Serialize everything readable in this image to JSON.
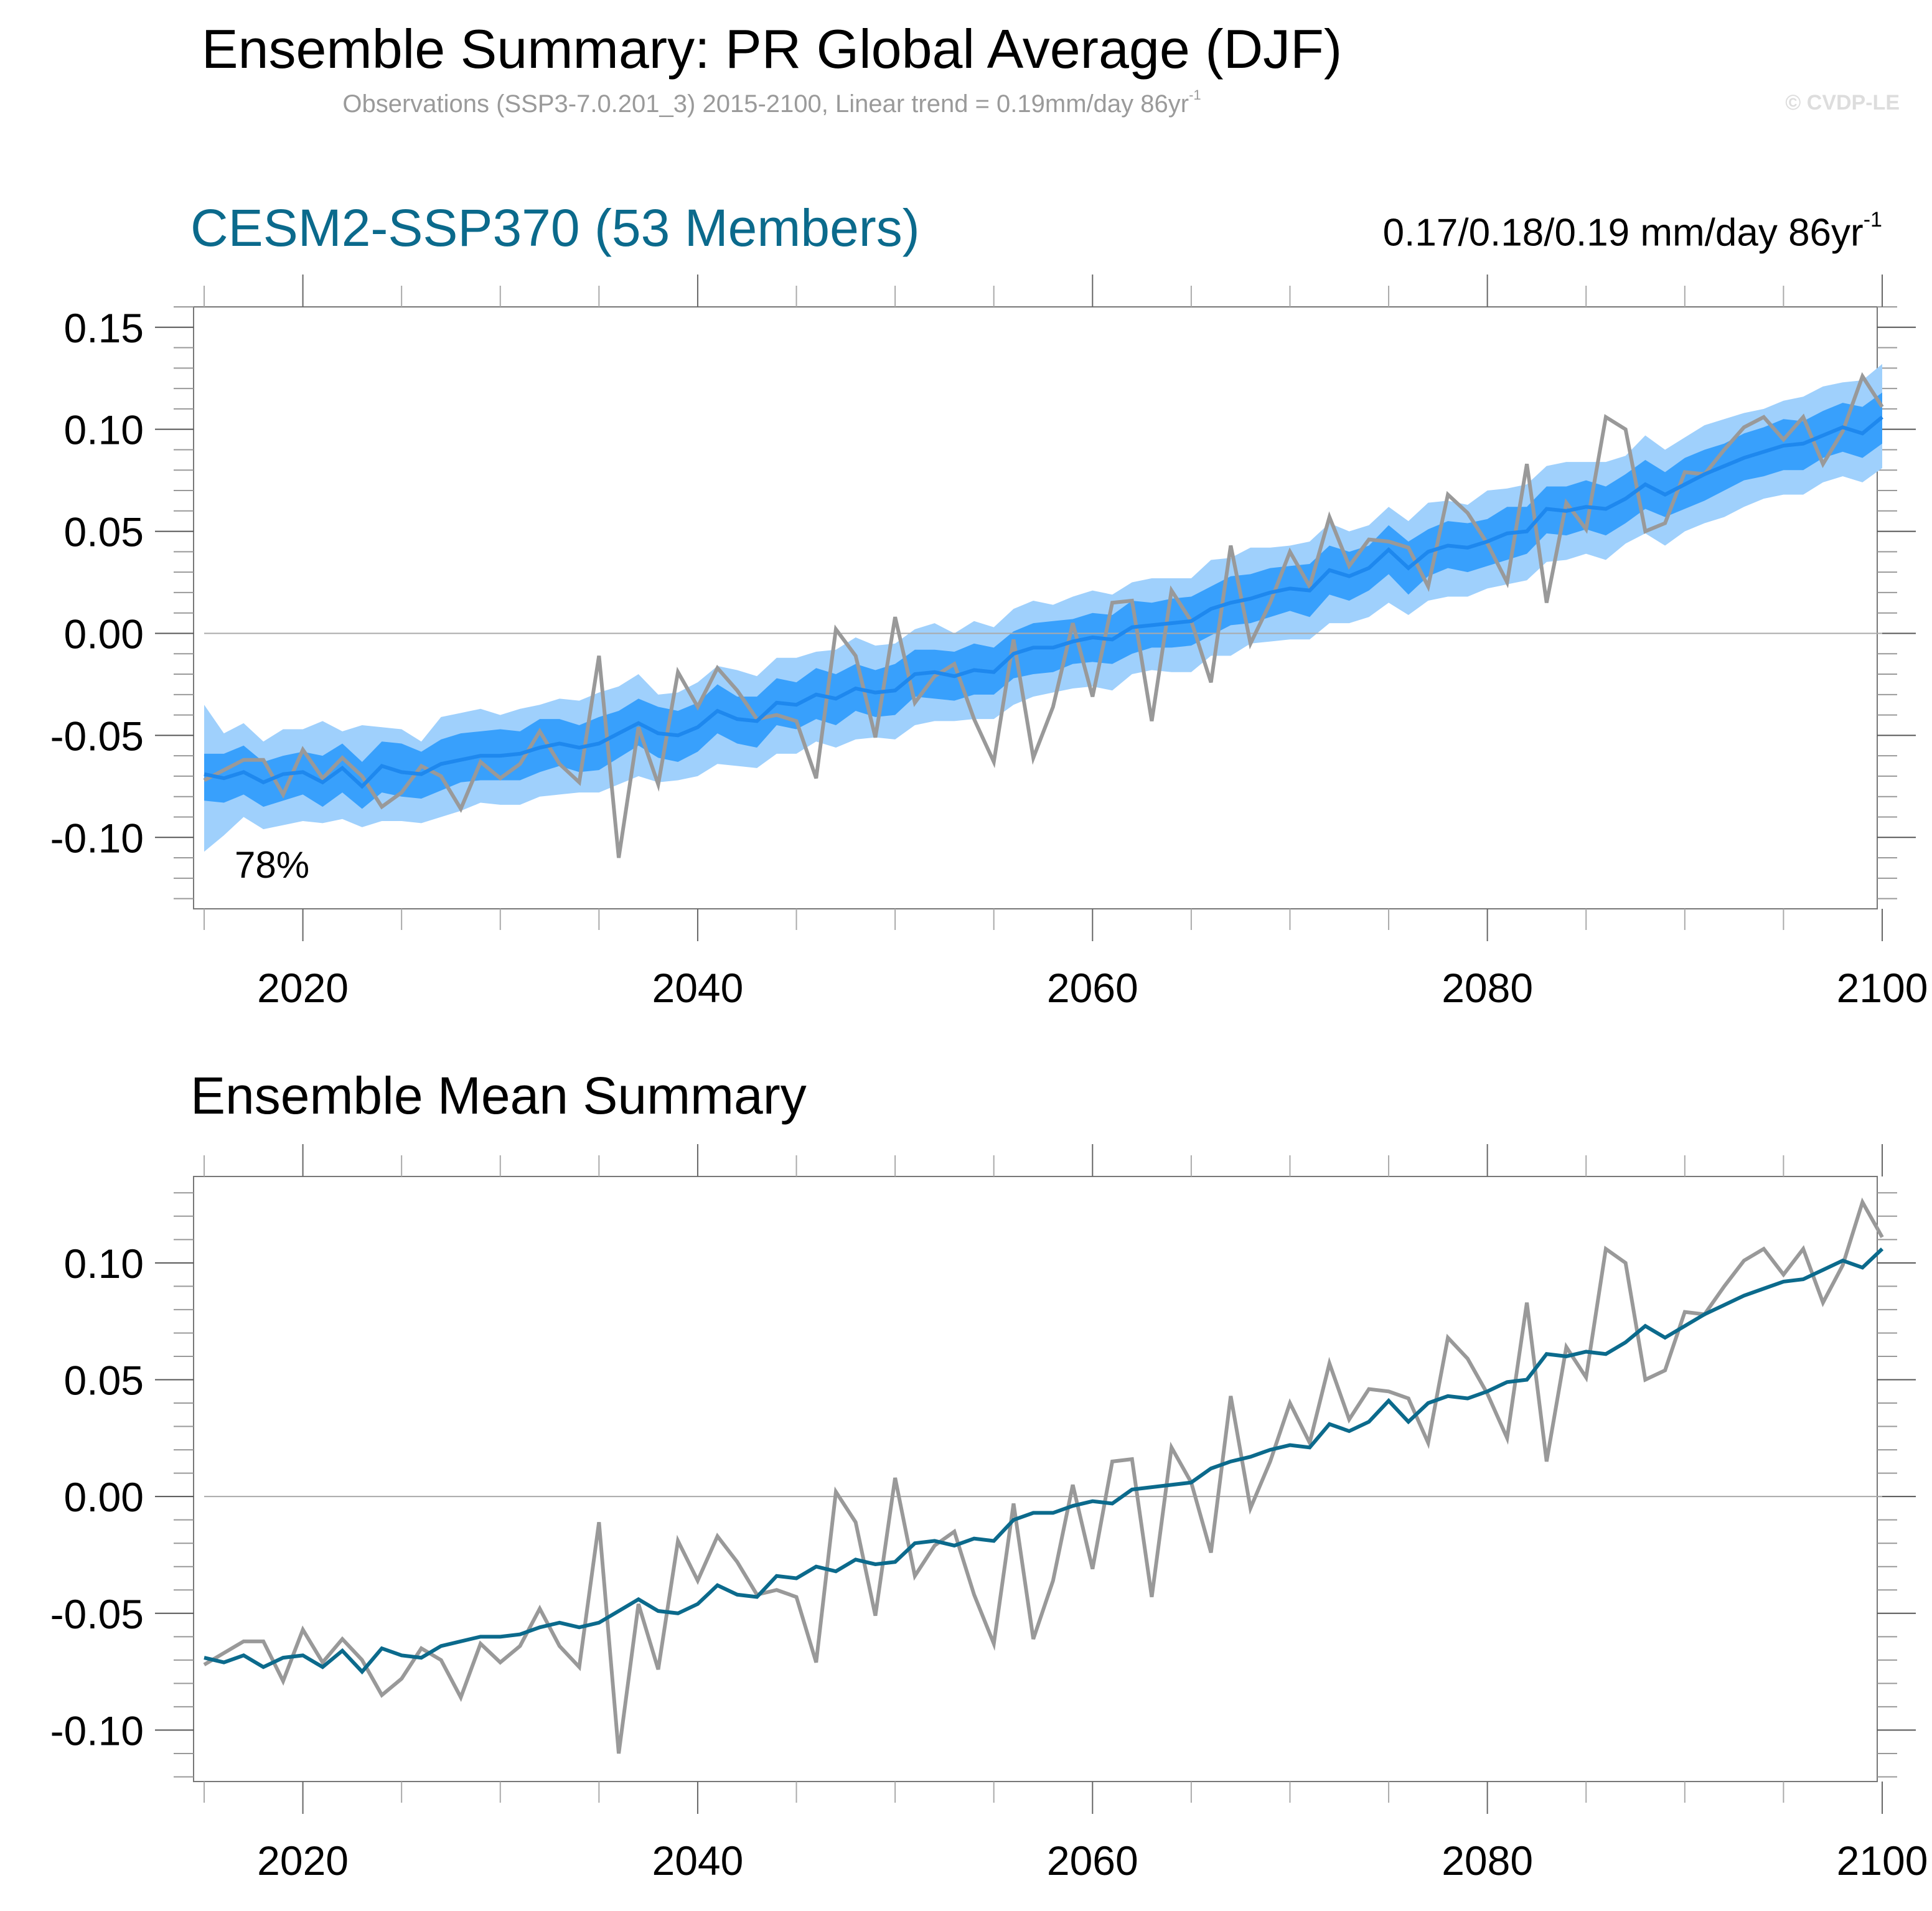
{
  "header": {
    "title": "Ensemble Summary: PR Global Average (DJF)",
    "subtitle_text": "Observations (SSP3-7.0.201_3) 2015-2100, Linear trend = 0.19mm/day 86yr",
    "subtitle_sup": "-1",
    "watermark": "© CVDP-LE"
  },
  "panel1": {
    "title": "CESM2-SSP370 (53 Members)",
    "trend_text": "0.17/0.18/0.19 mm/day 86yr",
    "trend_sup": "-1",
    "percent_label": "78%"
  },
  "panel2": {
    "title": "Ensemble Mean Summary"
  },
  "colors": {
    "outer_band": "#9fd0fc",
    "inner_band": "#38a0fc",
    "ens_mean_top": "#1e88ee",
    "ens_mean_bottom": "#0b6a8c",
    "observations": "#999999",
    "zero_line": "#aaaaaa",
    "title_accent": "#0b6a8c"
  },
  "chart_data": [
    {
      "type": "area",
      "title": "CESM2-SSP370 (53 Members)",
      "xlabel": "",
      "ylabel": "",
      "xlim": [
        2015,
        2100
      ],
      "ylim": [
        -0.135,
        0.16
      ],
      "x_ticks": [
        2020,
        2040,
        2060,
        2080,
        2100
      ],
      "x_tick_labels": [
        "2020",
        "2040",
        "2060",
        "2080",
        "2100"
      ],
      "y_ticks": [
        -0.1,
        -0.05,
        0.0,
        0.05,
        0.1,
        0.15
      ],
      "y_tick_labels": [
        "-0.10",
        "-0.05",
        "0.00",
        "0.05",
        "0.10",
        "0.15"
      ],
      "grid": false,
      "reference_line": 0.0,
      "annotation": "78%",
      "series_ref": {
        "ensemble_mean": "shared.ens_mean",
        "observations": "shared.obs"
      },
      "bands": [
        {
          "name": "outer-range",
          "lower_offset_ref": "shared.outer_lo",
          "upper_offset_ref": "shared.outer_hi"
        },
        {
          "name": "inner-range",
          "lower_offset_ref": "shared.inner_lo",
          "upper_offset_ref": "shared.inner_hi"
        }
      ]
    },
    {
      "type": "line",
      "title": "Ensemble Mean Summary",
      "xlabel": "",
      "ylabel": "",
      "xlim": [
        2015,
        2100
      ],
      "ylim": [
        -0.122,
        0.137
      ],
      "x_ticks": [
        2020,
        2040,
        2060,
        2080,
        2100
      ],
      "x_tick_labels": [
        "2020",
        "2040",
        "2060",
        "2080",
        "2100"
      ],
      "y_ticks": [
        -0.1,
        -0.05,
        0.0,
        0.05,
        0.1
      ],
      "y_tick_labels": [
        "-0.10",
        "-0.05",
        "0.00",
        "0.05",
        "0.10"
      ],
      "grid": false,
      "reference_line": 0.0,
      "series": [
        {
          "name": "Ensemble Mean",
          "ref": "shared.ens_mean"
        },
        {
          "name": "Observations",
          "ref": "shared.obs"
        }
      ]
    }
  ],
  "shared": {
    "x_start": 2015,
    "x_end": 2100,
    "ens_mean": [
      -0.069,
      -0.071,
      -0.068,
      -0.073,
      -0.069,
      -0.068,
      -0.073,
      -0.066,
      -0.075,
      -0.065,
      -0.068,
      -0.069,
      -0.064,
      -0.062,
      -0.06,
      -0.06,
      -0.059,
      -0.056,
      -0.054,
      -0.056,
      -0.054,
      -0.049,
      -0.044,
      -0.049,
      -0.05,
      -0.046,
      -0.038,
      -0.042,
      -0.043,
      -0.034,
      -0.035,
      -0.03,
      -0.032,
      -0.027,
      -0.029,
      -0.028,
      -0.02,
      -0.019,
      -0.021,
      -0.018,
      -0.019,
      -0.01,
      -0.007,
      -0.007,
      -0.004,
      -0.002,
      -0.003,
      0.003,
      0.004,
      0.005,
      0.006,
      0.012,
      0.015,
      0.017,
      0.02,
      0.022,
      0.021,
      0.031,
      0.028,
      0.032,
      0.041,
      0.032,
      0.04,
      0.043,
      0.042,
      0.045,
      0.049,
      0.05,
      0.061,
      0.06,
      0.062,
      0.061,
      0.066,
      0.073,
      0.068,
      0.073,
      0.078,
      0.082,
      0.086,
      0.089,
      0.092,
      0.093,
      0.097,
      0.101,
      0.098,
      0.106
    ],
    "obs": [
      -0.072,
      -0.067,
      -0.062,
      -0.062,
      -0.079,
      -0.057,
      -0.071,
      -0.061,
      -0.07,
      -0.085,
      -0.078,
      -0.065,
      -0.07,
      -0.086,
      -0.063,
      -0.071,
      -0.064,
      -0.048,
      -0.064,
      -0.073,
      -0.011,
      -0.11,
      -0.046,
      -0.074,
      -0.019,
      -0.036,
      -0.017,
      -0.028,
      -0.042,
      -0.04,
      -0.043,
      -0.071,
      0.002,
      -0.011,
      -0.051,
      0.008,
      -0.034,
      -0.021,
      -0.015,
      -0.042,
      -0.063,
      -0.003,
      -0.061,
      -0.036,
      0.005,
      -0.031,
      0.015,
      0.016,
      -0.043,
      0.021,
      0.006,
      -0.024,
      0.043,
      -0.005,
      0.015,
      0.04,
      0.023,
      0.057,
      0.033,
      0.046,
      0.045,
      0.042,
      0.023,
      0.068,
      0.059,
      0.044,
      0.025,
      0.083,
      0.015,
      0.064,
      0.051,
      0.106,
      0.1,
      0.05,
      0.054,
      0.079,
      0.078,
      0.09,
      0.101,
      0.106,
      0.095,
      0.106,
      0.083,
      0.099,
      0.126,
      0.111
    ],
    "outer_hi": [
      0.034,
      0.022,
      0.024,
      0.02,
      0.022,
      0.021,
      0.03,
      0.018,
      0.03,
      0.019,
      0.021,
      0.016,
      0.023,
      0.023,
      0.023,
      0.02,
      0.022,
      0.021,
      0.022,
      0.023,
      0.025,
      0.023,
      0.024,
      0.019,
      0.021,
      0.022,
      0.022,
      0.024,
      0.022,
      0.022,
      0.023,
      0.021,
      0.024,
      0.025,
      0.023,
      0.023,
      0.022,
      0.024,
      0.021,
      0.024,
      0.022,
      0.022,
      0.023,
      0.021,
      0.022,
      0.023,
      0.022,
      0.022,
      0.023,
      0.022,
      0.021,
      0.024,
      0.022,
      0.025,
      0.022,
      0.021,
      0.024,
      0.023,
      0.022,
      0.021,
      0.021,
      0.023,
      0.024,
      0.022,
      0.021,
      0.025,
      0.022,
      0.023,
      0.021,
      0.024,
      0.022,
      0.023,
      0.021,
      0.024,
      0.022,
      0.023,
      0.024,
      0.023,
      0.022,
      0.021,
      0.022,
      0.023,
      0.024,
      0.022,
      0.026,
      0.026
    ],
    "outer_lo": [
      -0.038,
      -0.028,
      -0.022,
      -0.023,
      -0.025,
      -0.024,
      -0.02,
      -0.025,
      -0.02,
      -0.027,
      -0.024,
      -0.024,
      -0.026,
      -0.025,
      -0.023,
      -0.024,
      -0.025,
      -0.024,
      -0.025,
      -0.022,
      -0.024,
      -0.025,
      -0.026,
      -0.024,
      -0.022,
      -0.024,
      -0.026,
      -0.023,
      -0.023,
      -0.025,
      -0.024,
      -0.023,
      -0.024,
      -0.025,
      -0.022,
      -0.024,
      -0.025,
      -0.024,
      -0.022,
      -0.024,
      -0.023,
      -0.025,
      -0.024,
      -0.022,
      -0.023,
      -0.024,
      -0.025,
      -0.023,
      -0.022,
      -0.024,
      -0.025,
      -0.023,
      -0.026,
      -0.022,
      -0.024,
      -0.025,
      -0.024,
      -0.026,
      -0.023,
      -0.024,
      -0.026,
      -0.023,
      -0.024,
      -0.025,
      -0.024,
      -0.023,
      -0.025,
      -0.024,
      -0.026,
      -0.024,
      -0.023,
      -0.025,
      -0.022,
      -0.024,
      -0.025,
      -0.023,
      -0.024,
      -0.025,
      -0.024,
      -0.023,
      -0.024,
      -0.025,
      -0.023,
      -0.024,
      -0.024,
      -0.025
    ],
    "inner_hi": [
      0.01,
      0.012,
      0.013,
      0.01,
      0.009,
      0.01,
      0.013,
      0.012,
      0.012,
      0.012,
      0.014,
      0.011,
      0.012,
      0.013,
      0.012,
      0.013,
      0.011,
      0.014,
      0.012,
      0.011,
      0.013,
      0.011,
      0.012,
      0.013,
      0.012,
      0.012,
      0.013,
      0.011,
      0.012,
      0.012,
      0.011,
      0.013,
      0.012,
      0.012,
      0.011,
      0.013,
      0.012,
      0.011,
      0.012,
      0.013,
      0.012,
      0.011,
      0.012,
      0.013,
      0.011,
      0.012,
      0.012,
      0.013,
      0.011,
      0.012,
      0.012,
      0.011,
      0.013,
      0.012,
      0.012,
      0.011,
      0.013,
      0.012,
      0.012,
      0.011,
      0.012,
      0.013,
      0.011,
      0.012,
      0.012,
      0.011,
      0.013,
      0.012,
      0.011,
      0.012,
      0.013,
      0.011,
      0.012,
      0.012,
      0.011,
      0.013,
      0.012,
      0.011,
      0.012,
      0.012,
      0.013,
      0.011,
      0.012,
      0.012,
      0.013,
      0.012
    ],
    "inner_lo": [
      -0.013,
      -0.012,
      -0.011,
      -0.012,
      -0.013,
      -0.011,
      -0.012,
      -0.012,
      -0.011,
      -0.013,
      -0.012,
      -0.012,
      -0.013,
      -0.011,
      -0.012,
      -0.012,
      -0.013,
      -0.012,
      -0.011,
      -0.012,
      -0.013,
      -0.012,
      -0.011,
      -0.012,
      -0.013,
      -0.012,
      -0.011,
      -0.012,
      -0.013,
      -0.011,
      -0.012,
      -0.012,
      -0.013,
      -0.011,
      -0.012,
      -0.012,
      -0.011,
      -0.013,
      -0.012,
      -0.012,
      -0.011,
      -0.012,
      -0.013,
      -0.012,
      -0.011,
      -0.012,
      -0.012,
      -0.013,
      -0.011,
      -0.012,
      -0.012,
      -0.013,
      -0.011,
      -0.012,
      -0.012,
      -0.011,
      -0.013,
      -0.012,
      -0.012,
      -0.011,
      -0.012,
      -0.013,
      -0.012,
      -0.011,
      -0.012,
      -0.012,
      -0.013,
      -0.011,
      -0.012,
      -0.012,
      -0.011,
      -0.013,
      -0.012,
      -0.012,
      -0.011,
      -0.012,
      -0.013,
      -0.012,
      -0.011,
      -0.012,
      -0.012,
      -0.013,
      -0.011,
      -0.012,
      -0.012,
      -0.013
    ]
  }
}
